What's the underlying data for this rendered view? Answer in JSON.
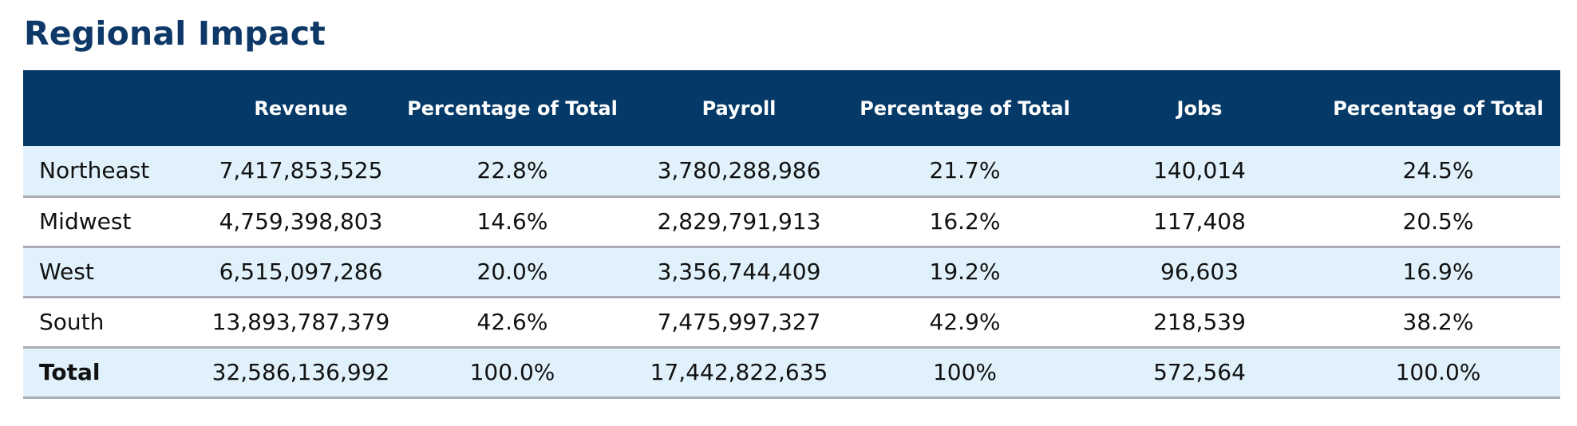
{
  "title": "Regional Impact",
  "colors": {
    "title": "#0d3868",
    "header_bg": "#053a68",
    "header_text": "#ffffff",
    "row_shaded": "#e1f1fb",
    "row_plain": "#ffffff",
    "row_divider": "#a8adb3"
  },
  "table": {
    "headers": [
      "",
      "Revenue",
      "Percentage of Total",
      "Payroll",
      "Percentage of Total",
      "Jobs",
      "Percentage of Total"
    ],
    "rows": [
      [
        "Northeast",
        "7,417,853,525",
        "22.8%",
        "3,780,288,986",
        "21.7%",
        "140,014",
        "24.5%"
      ],
      [
        "Midwest",
        "4,759,398,803",
        "14.6%",
        "2,829,791,913",
        "16.2%",
        "117,408",
        "20.5%"
      ],
      [
        "West",
        "6,515,097,286",
        "20.0%",
        "3,356,744,409",
        "19.2%",
        "96,603",
        "16.9%"
      ],
      [
        "South",
        "13,893,787,379",
        "42.6%",
        "7,475,997,327",
        "42.9%",
        "218,539",
        "38.2%"
      ],
      [
        "Total",
        "32,586,136,992",
        "100.0%",
        "17,442,822,635",
        "100%",
        "572,564",
        "100.0%"
      ]
    ]
  }
}
